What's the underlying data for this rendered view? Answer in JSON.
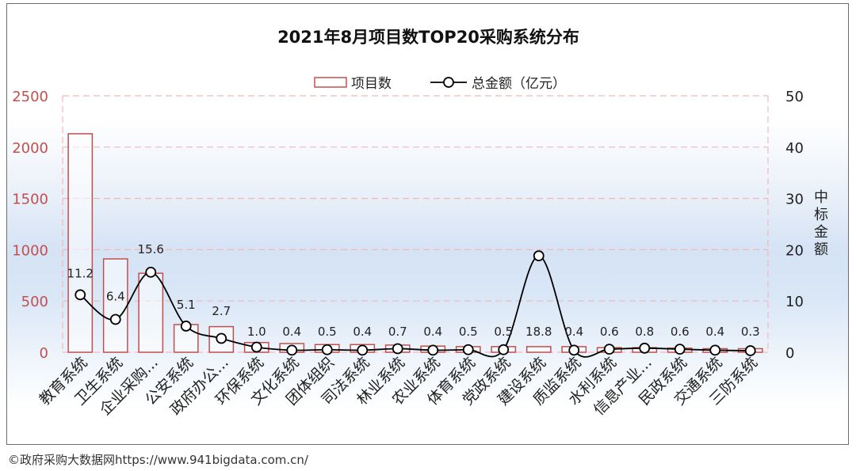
{
  "chart_data": {
    "type": "bar+line",
    "title": "2021年8月项目数TOP20采购系统分布",
    "categories": [
      "教育系统",
      "卫生系统",
      "企业采购...",
      "公安系统",
      "政府办公...",
      "环保系统",
      "文化系统",
      "团体组织",
      "司法系统",
      "林业系统",
      "农业系统",
      "体育系统",
      "党政系统",
      "建设系统",
      "质监系统",
      "水利系统",
      "信息产业...",
      "民政系统",
      "交通系统",
      "三防系统"
    ],
    "series": [
      {
        "name": "项目数",
        "kind": "bar",
        "axis": "left",
        "color": "#c0504d",
        "values": [
          2130,
          910,
          770,
          270,
          250,
          95,
          85,
          75,
          75,
          70,
          60,
          55,
          55,
          55,
          55,
          45,
          45,
          40,
          35,
          35
        ]
      },
      {
        "name": "总金额（亿元）",
        "kind": "line",
        "axis": "right",
        "color": "#000000",
        "values": [
          11.2,
          6.4,
          15.6,
          5.1,
          2.7,
          1.0,
          0.4,
          0.5,
          0.4,
          0.7,
          0.4,
          0.5,
          0.5,
          18.8,
          0.4,
          0.6,
          0.8,
          0.6,
          0.4,
          0.3
        ],
        "labels": [
          "11.2",
          "6.4",
          "15.6",
          "5.1",
          "2.7",
          "1.0",
          "0.4",
          "0.5",
          "0.4",
          "0.7",
          "0.4",
          "0.5",
          "0.5",
          "18.8",
          "0.4",
          "0.6",
          "0.8",
          "0.6",
          "0.4",
          "0.3"
        ]
      }
    ],
    "left_axis": {
      "ylim": [
        0,
        2500
      ],
      "ticks": [
        "0",
        "500",
        "1000",
        "1500",
        "2000",
        "2500"
      ],
      "color": "#c0504d"
    },
    "right_axis": {
      "ylim": [
        0,
        50
      ],
      "ticks": [
        "0",
        "10",
        "20",
        "30",
        "40",
        "50"
      ],
      "label": "中标金额"
    },
    "grid": true,
    "legend_position": "top"
  },
  "footer": "©政府采购大数据网https://www.941bigdata.com.cn/"
}
